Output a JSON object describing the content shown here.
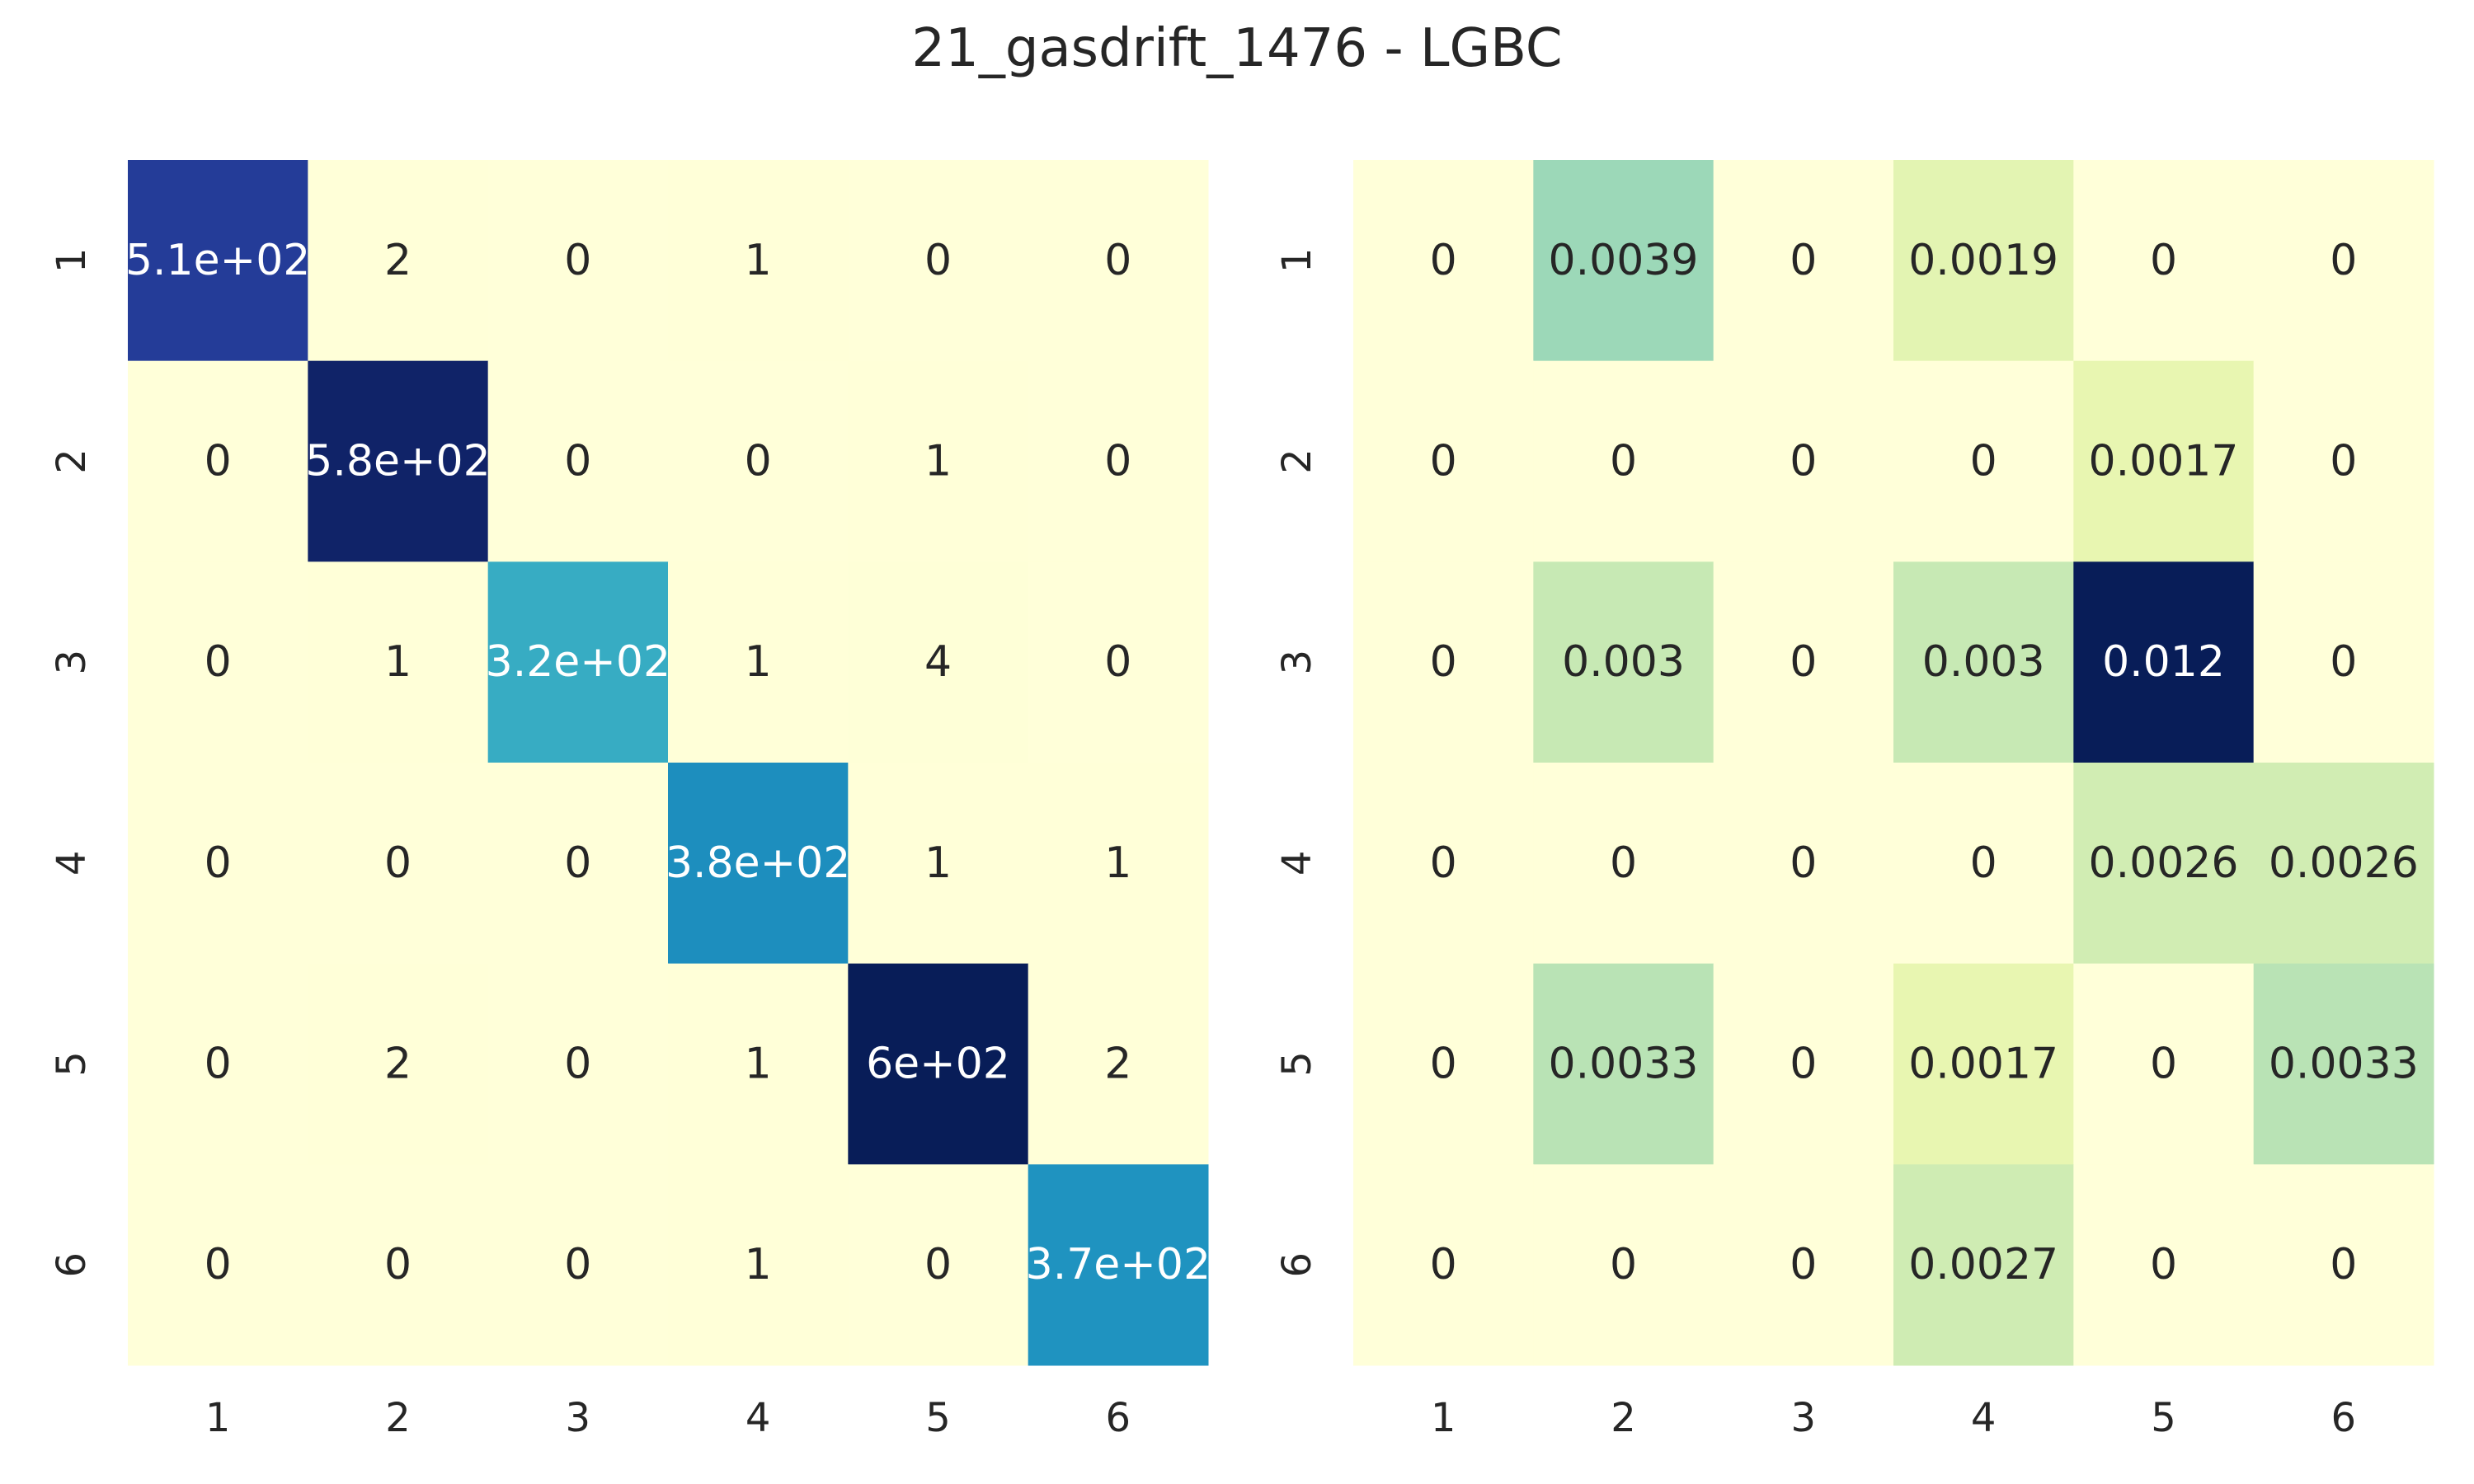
{
  "title": "21_gasdrift_1476 - LGBC",
  "chart_data": [
    {
      "type": "heatmap",
      "x_tick_labels": [
        "1",
        "2",
        "3",
        "4",
        "5",
        "6"
      ],
      "y_tick_labels": [
        "1",
        "2",
        "3",
        "4",
        "5",
        "6"
      ],
      "colormap": "YlGnBu",
      "values": [
        [
          510,
          2,
          0,
          1,
          0,
          0
        ],
        [
          0,
          580,
          0,
          0,
          1,
          0
        ],
        [
          0,
          1,
          320,
          1,
          4,
          0
        ],
        [
          0,
          0,
          0,
          380,
          1,
          1
        ],
        [
          0,
          2,
          0,
          1,
          600,
          2
        ],
        [
          0,
          0,
          0,
          1,
          0,
          370
        ]
      ],
      "labels": [
        [
          "5.1e+02",
          "2",
          "0",
          "1",
          "0",
          "0"
        ],
        [
          "0",
          "5.8e+02",
          "0",
          "0",
          "1",
          "0"
        ],
        [
          "0",
          "1",
          "3.2e+02",
          "1",
          "4",
          "0"
        ],
        [
          "0",
          "0",
          "0",
          "3.8e+02",
          "1",
          "1"
        ],
        [
          "0",
          "2",
          "0",
          "1",
          "6e+02",
          "2"
        ],
        [
          "0",
          "0",
          "0",
          "1",
          "0",
          "3.7e+02"
        ]
      ]
    },
    {
      "type": "heatmap",
      "x_tick_labels": [
        "1",
        "2",
        "3",
        "4",
        "5",
        "6"
      ],
      "y_tick_labels": [
        "1",
        "2",
        "3",
        "4",
        "5",
        "6"
      ],
      "colormap": "YlGnBu",
      "values": [
        [
          0,
          0.0039,
          0,
          0.0019,
          0,
          0
        ],
        [
          0,
          0,
          0,
          0,
          0.0017,
          0
        ],
        [
          0,
          0.003,
          0,
          0.003,
          0.012,
          0
        ],
        [
          0,
          0,
          0,
          0,
          0.0026,
          0.0026
        ],
        [
          0,
          0.0033,
          0,
          0.0017,
          0,
          0.0033
        ],
        [
          0,
          0,
          0,
          0.0027,
          0,
          0
        ]
      ],
      "labels": [
        [
          "0",
          "0.0039",
          "0",
          "0.0019",
          "0",
          "0"
        ],
        [
          "0",
          "0",
          "0",
          "0",
          "0.0017",
          "0"
        ],
        [
          "0",
          "0.003",
          "0",
          "0.003",
          "0.012",
          "0"
        ],
        [
          "0",
          "0",
          "0",
          "0",
          "0.0026",
          "0.0026"
        ],
        [
          "0",
          "0.0033",
          "0",
          "0.0017",
          "0",
          "0.0033"
        ],
        [
          "0",
          "0",
          "0",
          "0.0027",
          "0",
          "0"
        ]
      ]
    }
  ]
}
